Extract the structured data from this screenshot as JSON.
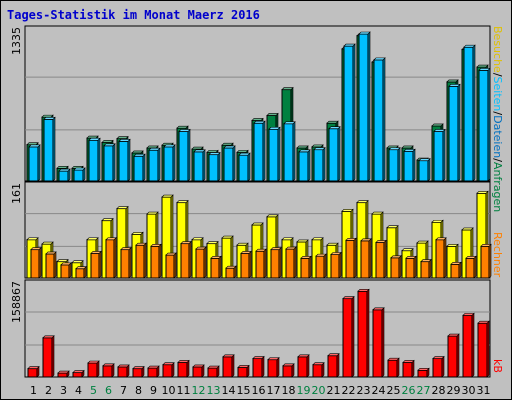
{
  "chart_data": [
    {
      "type": "bar",
      "title": "Tages-Statistik im Monat Maerz 2016",
      "ylabel": "Anfragen / Dateien / Seiten / Besuche",
      "y_max_label": "1335",
      "ylim": [
        0,
        1335
      ],
      "categories": [
        "1",
        "2",
        "3",
        "4",
        "5",
        "6",
        "7",
        "8",
        "9",
        "10",
        "11",
        "12",
        "13",
        "14",
        "15",
        "16",
        "17",
        "18",
        "19",
        "20",
        "21",
        "22",
        "23",
        "24",
        "25",
        "26",
        "27",
        "28",
        "29",
        "30",
        "31"
      ],
      "series": [
        {
          "name": "Anfragen",
          "color": "#008040",
          "values": [
            330,
            580,
            115,
            115,
            390,
            350,
            385,
            255,
            300,
            325,
            480,
            290,
            260,
            325,
            260,
            550,
            595,
            830,
            300,
            310,
            525,
            1200,
            1320,
            1080,
            300,
            300,
            190,
            500,
            900,
            1195,
            1035
          ]
        },
        {
          "name": "Dateien",
          "color": "#00c0ff",
          "values": [
            310,
            560,
            90,
            100,
            370,
            320,
            360,
            225,
            280,
            310,
            450,
            265,
            240,
            300,
            235,
            525,
            470,
            520,
            265,
            285,
            475,
            1225,
            1335,
            1100,
            285,
            270,
            185,
            450,
            860,
            1215,
            1005
          ]
        }
      ]
    },
    {
      "type": "bar",
      "ylabel": "Rechner / Besuche / Seiten",
      "y_max_label": "161",
      "ylim": [
        0,
        161
      ],
      "categories": [
        "1",
        "2",
        "3",
        "4",
        "5",
        "6",
        "7",
        "8",
        "9",
        "10",
        "11",
        "12",
        "13",
        "14",
        "15",
        "16",
        "17",
        "18",
        "19",
        "20",
        "21",
        "22",
        "23",
        "24",
        "25",
        "26",
        "27",
        "28",
        "29",
        "30",
        "31"
      ],
      "series": [
        {
          "name": "Besuche",
          "color": "#ffff00",
          "values": [
            70,
            62,
            30,
            28,
            70,
            105,
            127,
            80,
            117,
            148,
            138,
            70,
            63,
            73,
            60,
            97,
            112,
            70,
            66,
            70,
            60,
            122,
            138,
            117,
            92,
            50,
            64,
            102,
            58,
            88,
            155
          ]
        },
        {
          "name": "Rechner",
          "color": "#ff8000",
          "values": [
            52,
            44,
            24,
            17,
            45,
            70,
            52,
            60,
            58,
            42,
            63,
            53,
            36,
            18,
            45,
            49,
            52,
            53,
            36,
            40,
            43,
            69,
            68,
            65,
            37,
            36,
            30,
            70,
            25,
            36,
            58
          ]
        }
      ]
    },
    {
      "type": "bar",
      "ylabel": "kB",
      "y_max_label": "158867",
      "ylim": [
        0,
        158867
      ],
      "categories": [
        "1",
        "2",
        "3",
        "4",
        "5",
        "6",
        "7",
        "8",
        "9",
        "10",
        "11",
        "12",
        "13",
        "14",
        "15",
        "16",
        "17",
        "18",
        "19",
        "20",
        "21",
        "22",
        "23",
        "24",
        "25",
        "26",
        "27",
        "28",
        "29",
        "30",
        "31"
      ],
      "series": [
        {
          "name": "kB",
          "color": "#ff0000",
          "values": [
            15000,
            70000,
            7000,
            8000,
            25000,
            20000,
            18000,
            15000,
            16000,
            22000,
            26000,
            18000,
            16000,
            36000,
            17000,
            33000,
            31000,
            20000,
            36000,
            22000,
            38000,
            140000,
            153000,
            120000,
            30000,
            26000,
            12000,
            33000,
            73000,
            110000,
            96000
          ]
        }
      ]
    }
  ],
  "weekend_days": [
    "5",
    "6",
    "12",
    "13",
    "19",
    "20",
    "26",
    "27"
  ],
  "colors": {
    "background": "#c0c0c0",
    "plot_background": "#c0c0c0",
    "title": "#0000cc",
    "weekday_label": "#000000",
    "weekend_label": "#008040"
  }
}
